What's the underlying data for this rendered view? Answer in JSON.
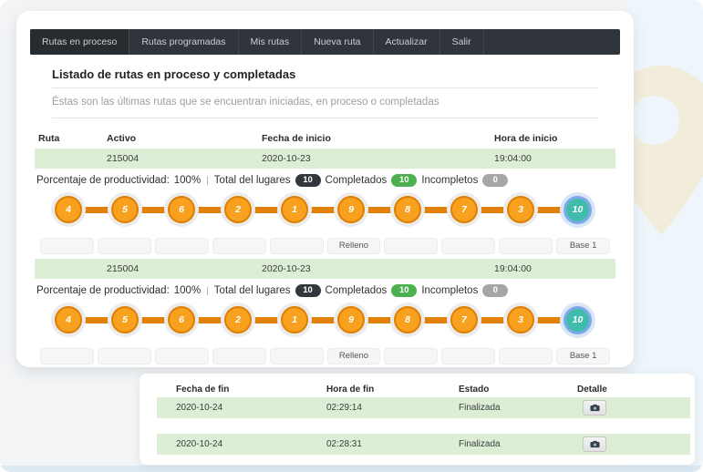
{
  "navbar": {
    "items": [
      {
        "label": "Rutas en proceso",
        "active": true
      },
      {
        "label": "Rutas programadas",
        "active": false
      },
      {
        "label": "Mis rutas",
        "active": false
      },
      {
        "label": "Nueva ruta",
        "active": false
      },
      {
        "label": "Actualizar",
        "active": false
      },
      {
        "label": "Salir",
        "active": false
      }
    ]
  },
  "page": {
    "title": "Listado de rutas en proceso y completadas",
    "subtitle": "Éstas son las últimas rutas que se encuentran iniciadas, en proceso o completadas"
  },
  "routes_table": {
    "headers": {
      "ruta": "Ruta",
      "activo": "Activo",
      "fecha_inicio": "Fecha de inicio",
      "hora_inicio": "Hora de inicio"
    }
  },
  "routes": [
    {
      "ruta": "",
      "activo": "215004",
      "fecha_inicio": "2020-10-23",
      "hora_inicio": "19:04:00",
      "productivity": {
        "label": "Porcentaje de productividad:",
        "value": "100%",
        "separator": "|",
        "total_label": "Total del lugares",
        "total": "10",
        "completados_label": "Completados",
        "completados": "10",
        "incompletos_label": "Incompletos",
        "incompletos": "0"
      },
      "stops": [
        {
          "number": "4",
          "label": "",
          "type": "place"
        },
        {
          "number": "5",
          "label": "",
          "type": "place"
        },
        {
          "number": "6",
          "label": "",
          "type": "place"
        },
        {
          "number": "2",
          "label": "",
          "type": "place"
        },
        {
          "number": "1",
          "label": "",
          "type": "place"
        },
        {
          "number": "9",
          "label": "Relleno",
          "type": "place"
        },
        {
          "number": "8",
          "label": "",
          "type": "place"
        },
        {
          "number": "7",
          "label": "",
          "type": "place"
        },
        {
          "number": "3",
          "label": "",
          "type": "place"
        },
        {
          "number": "10",
          "label": "Base 1",
          "type": "base"
        }
      ]
    },
    {
      "ruta": "",
      "activo": "215004",
      "fecha_inicio": "2020-10-23",
      "hora_inicio": "19:04:00",
      "productivity": {
        "label": "Porcentaje de productividad:",
        "value": "100%",
        "separator": "|",
        "total_label": "Total del lugares",
        "total": "10",
        "completados_label": "Completados",
        "completados": "10",
        "incompletos_label": "Incompletos",
        "incompletos": "0"
      },
      "stops": [
        {
          "number": "4",
          "label": "",
          "type": "place"
        },
        {
          "number": "5",
          "label": "",
          "type": "place"
        },
        {
          "number": "6",
          "label": "",
          "type": "place"
        },
        {
          "number": "2",
          "label": "",
          "type": "place"
        },
        {
          "number": "1",
          "label": "",
          "type": "place"
        },
        {
          "number": "9",
          "label": "Relleno",
          "type": "place"
        },
        {
          "number": "8",
          "label": "",
          "type": "place"
        },
        {
          "number": "7",
          "label": "",
          "type": "place"
        },
        {
          "number": "3",
          "label": "",
          "type": "place"
        },
        {
          "number": "10",
          "label": "Base 1",
          "type": "base"
        }
      ]
    }
  ],
  "finish_table": {
    "headers": {
      "fecha_fin": "Fecha de fin",
      "hora_fin": "Hora de fin",
      "estado": "Estado",
      "detalle": "Detalle"
    },
    "rows": [
      {
        "fecha_fin": "2020-10-24",
        "hora_fin": "02:29:14",
        "estado": "Finalizada",
        "detail_icon": "camera-icon"
      },
      {
        "fecha_fin": "2020-10-24",
        "hora_fin": "02:28:31",
        "estado": "Finalizada",
        "detail_icon": "camera-icon"
      }
    ]
  },
  "background": {
    "pin_icon": "map-pin-icon"
  },
  "colors": {
    "navbar_bg": "#30353b",
    "row_green": "#ddeed6",
    "stop_orange": "#f8a11f",
    "line_orange": "#e2820a",
    "base_teal": "#3fbcab",
    "base_ring_blue": "#7fa8ea",
    "badge_dark": "#32373d",
    "badge_green": "#4caf50",
    "badge_gray": "#a6a6a6",
    "pin_beige": "#f2ecdb",
    "bg_blue": "#eef6fb"
  }
}
